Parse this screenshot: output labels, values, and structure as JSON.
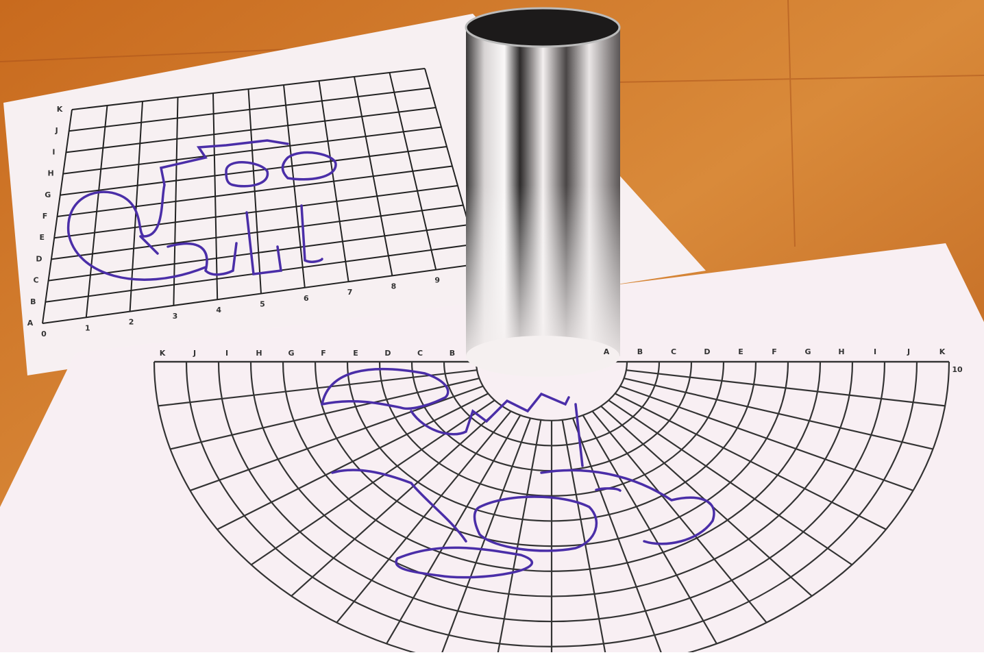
{
  "grid_sheet": {
    "column_labels": [
      "0",
      "1",
      "2",
      "3",
      "4",
      "5",
      "6",
      "7",
      "8",
      "9"
    ],
    "row_labels": [
      "A",
      "B",
      "C",
      "D",
      "E",
      "F",
      "G",
      "H",
      "I",
      "J",
      "K"
    ]
  },
  "polar_sheet": {
    "left_labels": [
      "K",
      "J",
      "I",
      "H",
      "G",
      "F",
      "E",
      "D",
      "C",
      "B"
    ],
    "right_labels": [
      "A",
      "B",
      "C",
      "D",
      "E",
      "F",
      "G",
      "H",
      "I",
      "J",
      "K"
    ],
    "end_label": "10"
  }
}
